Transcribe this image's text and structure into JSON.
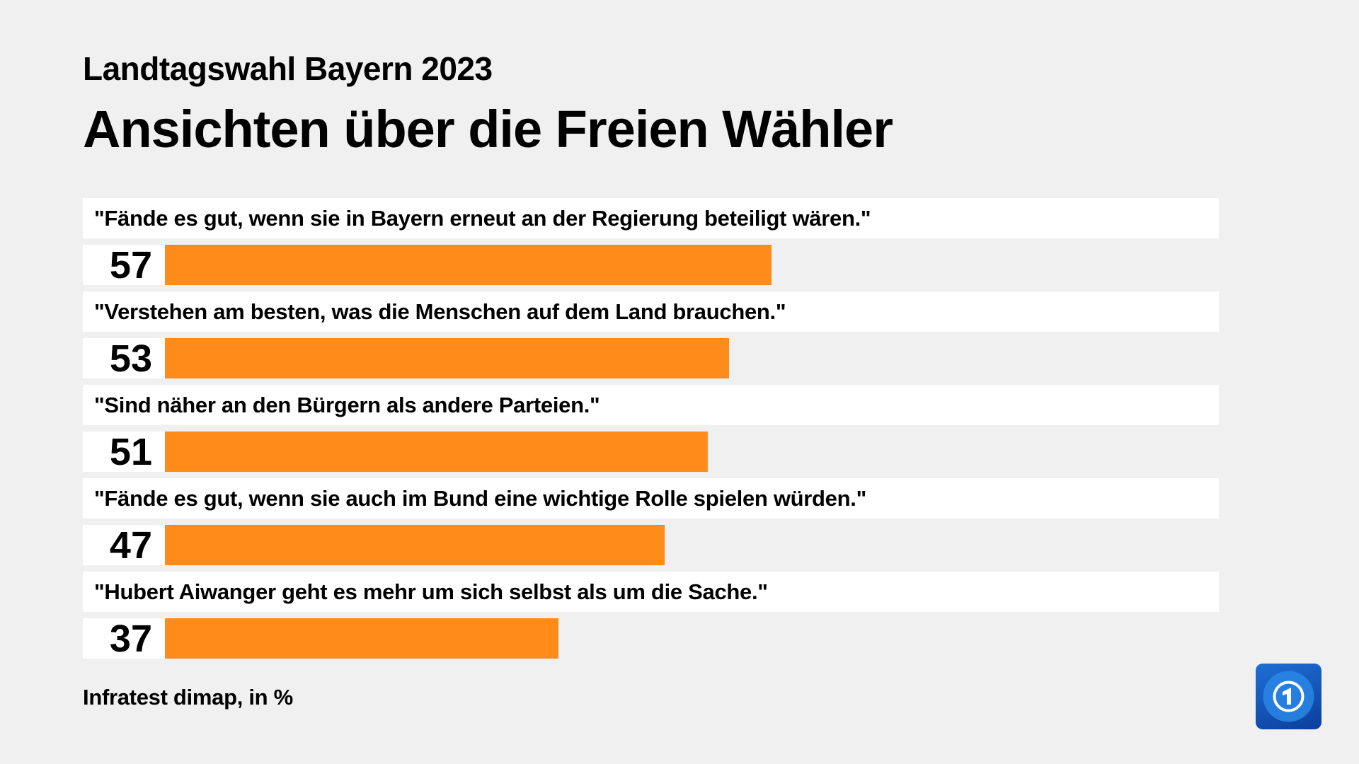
{
  "header": {
    "subtitle": "Landtagswahl Bayern 2023",
    "title": "Ansichten über die Freien Wähler"
  },
  "chart_data": {
    "type": "bar",
    "orientation": "horizontal",
    "categories": [
      "\"Fände es gut, wenn sie in Bayern erneut an der Regierung beteiligt wären.\"",
      "\"Verstehen am besten, was die Menschen auf dem Land brauchen.\"",
      "\"Sind näher an den Bürgern als andere Parteien.\"",
      "\"Fände es gut, wenn sie auch im Bund eine wichtige Rolle spielen würden.\"",
      "\"Hubert Aiwanger geht es mehr um sich selbst als um die Sache.\""
    ],
    "values": [
      57,
      53,
      51,
      47,
      37
    ],
    "labels": [
      "57",
      "53",
      "51",
      "47",
      "37"
    ],
    "unit": "%",
    "bar_color": "#ff8c1a",
    "grid": false
  },
  "footer": {
    "source": "Infratest dimap, in %",
    "logo": "tagesschau-logo"
  }
}
